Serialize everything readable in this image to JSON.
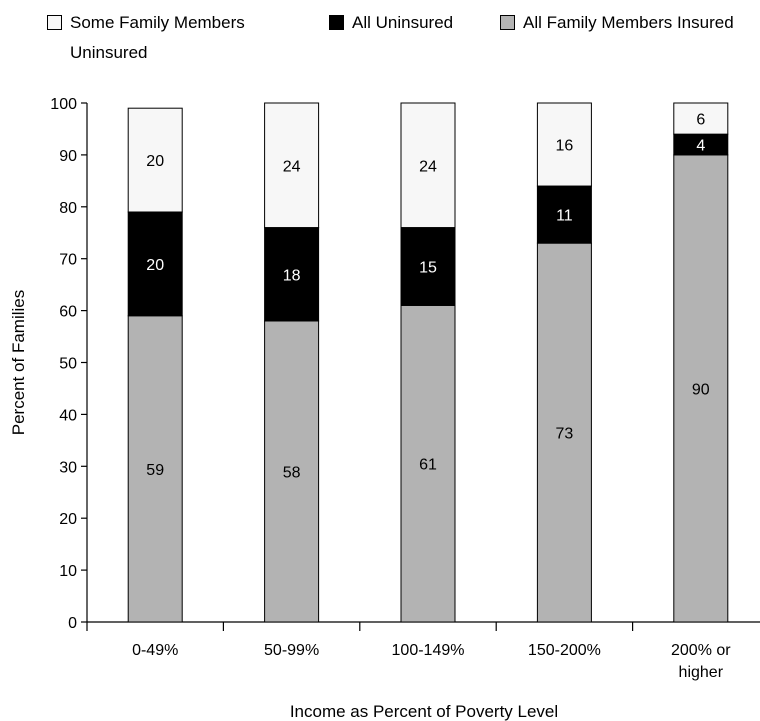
{
  "legend": {
    "items": [
      {
        "label": "Some Family Members\nUninsured",
        "color": "#f7f7f7"
      },
      {
        "label": "All Uninsured",
        "color": "#000000"
      },
      {
        "label": "All Family Members Insured",
        "color": "#b3b3b3"
      }
    ]
  },
  "chart_data": {
    "type": "bar",
    "stacked": true,
    "categories": [
      "0-49%",
      "50-99%",
      "100-149%",
      "150-200%",
      "200% or\nhigher"
    ],
    "series": [
      {
        "name": "All Family Members Insured",
        "values": [
          59,
          58,
          61,
          73,
          90
        ],
        "color": "#b3b3b3",
        "label_color": "#000000"
      },
      {
        "name": "All Uninsured",
        "values": [
          20,
          18,
          15,
          11,
          4
        ],
        "color": "#000000",
        "label_color": "#ffffff"
      },
      {
        "name": "Some Family Members\nUninsured",
        "values": [
          20,
          24,
          24,
          16,
          6
        ],
        "color": "#f7f7f7",
        "label_color": "#000000"
      }
    ],
    "xlabel": "Income as Percent of Poverty Level",
    "ylabel": "Percent of Families",
    "ylim": [
      0,
      100
    ],
    "yticks": [
      0,
      10,
      20,
      30,
      40,
      50,
      60,
      70,
      80,
      90,
      100
    ],
    "grid": false,
    "legend_position": "top"
  }
}
